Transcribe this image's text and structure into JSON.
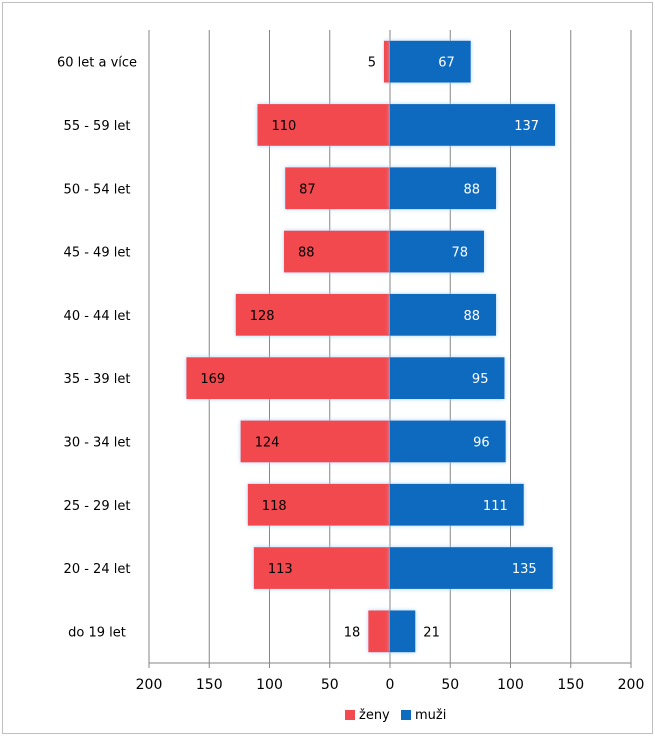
{
  "chart_data": {
    "type": "bar",
    "orientation": "horizontal",
    "categories": [
      "60 let a více",
      "55 - 59 let",
      "50 - 54 let",
      "45 - 49 let",
      "40 - 44 let",
      "35 - 39 let",
      "30 - 34 let",
      "25 - 29 let",
      "20 - 24 let",
      "do 19 let"
    ],
    "series": [
      {
        "name": "ženy",
        "values": [
          5,
          110,
          87,
          88,
          128,
          169,
          124,
          118,
          113,
          18
        ],
        "color": "#f24a4f",
        "direction": "left"
      },
      {
        "name": "muži",
        "values": [
          67,
          137,
          88,
          78,
          88,
          95,
          96,
          111,
          135,
          21
        ],
        "color": "#0e6bbf",
        "direction": "right"
      }
    ],
    "x_ticks": [
      "200",
      "150",
      "100",
      "50",
      "0",
      "50",
      "100",
      "150",
      "200"
    ],
    "xlim": [
      -200,
      200
    ],
    "grid": true,
    "legend_position": "bottom"
  }
}
